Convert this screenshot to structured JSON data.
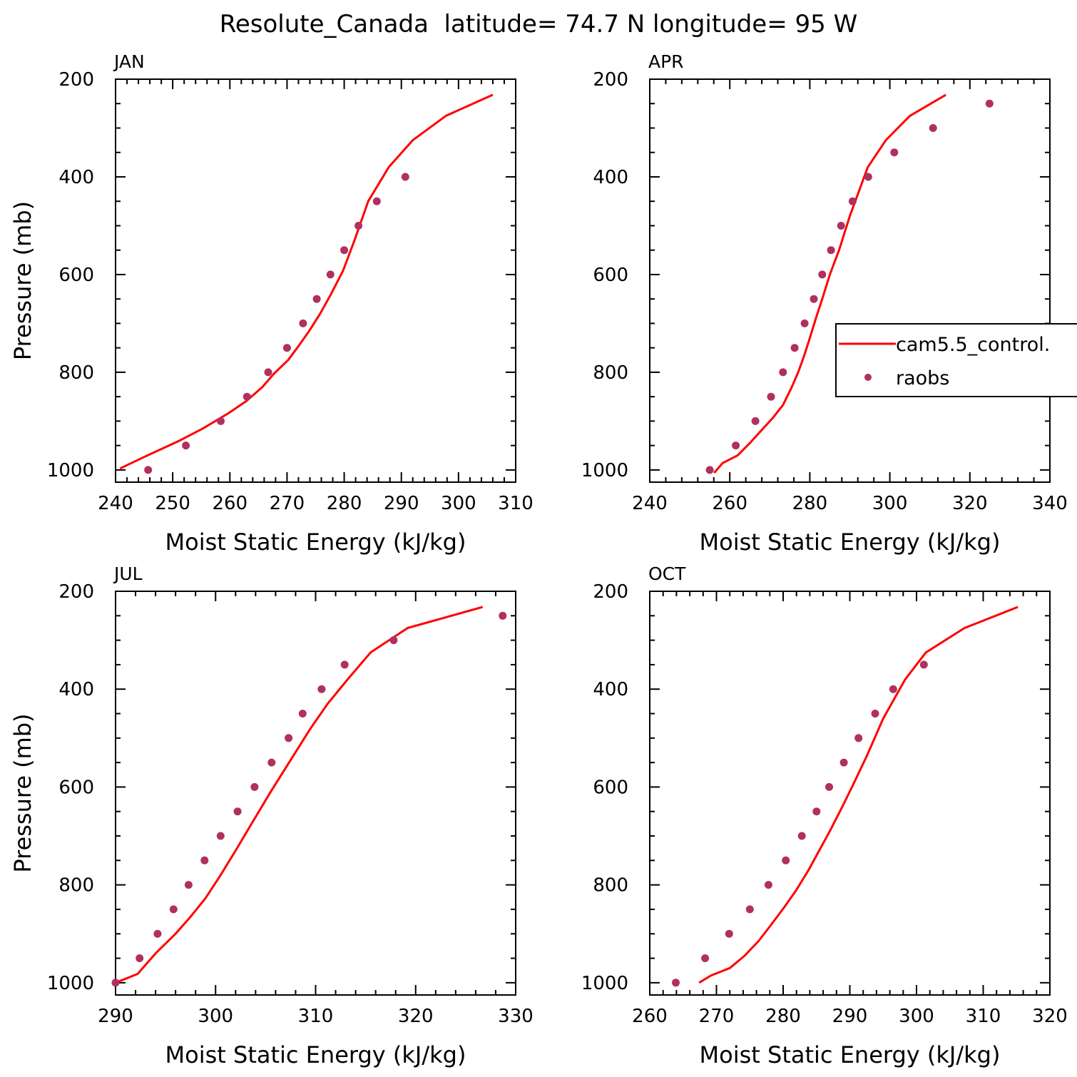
{
  "figure": {
    "title": "Resolute_Canada  latitude= 74.7 N longitude= 95 W"
  },
  "legend": {
    "entries": [
      {
        "label": "cam5.5_control.",
        "color": "#ff0000",
        "marker": "line"
      },
      {
        "label": "raobs",
        "color": "#b03060",
        "marker": "dot"
      }
    ],
    "placement": "inside APR panel, right, clipped at figure edge"
  },
  "colors": {
    "model": "#ff0000",
    "obs": "#b03060"
  },
  "chart_data": [
    {
      "type": "line",
      "panel": "JAN",
      "xlabel": "Moist Static Energy (kJ/kg)",
      "ylabel": "Pressure (mb)",
      "xlim": [
        240,
        310
      ],
      "xticks": [
        240,
        250,
        260,
        270,
        280,
        290,
        300,
        310
      ],
      "ylim": [
        1025,
        200
      ],
      "yticks": [
        200,
        400,
        600,
        800,
        1000
      ],
      "series": [
        {
          "name": "cam5.5_control.",
          "kind": "line",
          "x": [
            240.8,
            244.7,
            251.0,
            255.3,
            259.6,
            262.9,
            265.7,
            267.7,
            270.2,
            272.1,
            273.9,
            275.8,
            277.7,
            279.8,
            281.8,
            284.2,
            287.8,
            292.0,
            297.8,
            306.0
          ],
          "y": [
            997,
            975,
            941,
            915,
            885,
            859,
            830,
            803,
            775,
            745,
            715,
            680,
            640,
            592,
            530,
            450,
            380,
            325,
            275,
            232
          ]
        },
        {
          "name": "raobs",
          "kind": "scatter",
          "x": [
            245.7,
            252.3,
            258.4,
            263.0,
            266.7,
            270.0,
            272.8,
            275.2,
            277.6,
            280.0,
            282.5,
            285.7,
            290.7
          ],
          "y": [
            1000,
            950,
            900,
            850,
            800,
            750,
            700,
            650,
            600,
            550,
            500,
            450,
            400
          ]
        }
      ]
    },
    {
      "type": "line",
      "panel": "APR",
      "xlabel": "Moist Static Energy (kJ/kg)",
      "ylabel": "",
      "xlim": [
        240,
        340
      ],
      "xticks": [
        240,
        260,
        280,
        300,
        320,
        340
      ],
      "ylim": [
        1025,
        200
      ],
      "yticks": [
        200,
        400,
        600,
        800,
        1000
      ],
      "series": [
        {
          "name": "cam5.5_control.",
          "kind": "line",
          "x": [
            256.1,
            258.2,
            262.0,
            265.0,
            268.0,
            270.8,
            273.3,
            275.4,
            277.1,
            278.5,
            280.0,
            281.5,
            283.1,
            285.0,
            287.3,
            290.0,
            294.5,
            299.0,
            305.0,
            314.0
          ],
          "y": [
            1006,
            986,
            970,
            945,
            918,
            893,
            867,
            832,
            800,
            768,
            730,
            690,
            650,
            600,
            550,
            480,
            380,
            325,
            275,
            232
          ]
        },
        {
          "name": "raobs",
          "kind": "scatter",
          "x": [
            255.0,
            261.5,
            266.4,
            270.3,
            273.3,
            276.2,
            278.7,
            281.0,
            283.1,
            285.3,
            287.8,
            290.7,
            294.6,
            301.1,
            310.8,
            324.9
          ],
          "y": [
            1000,
            950,
            900,
            850,
            800,
            750,
            700,
            650,
            600,
            550,
            500,
            450,
            400,
            350,
            300,
            250
          ]
        }
      ]
    },
    {
      "type": "line",
      "panel": "JUL",
      "xlabel": "Moist Static Energy (kJ/kg)",
      "ylabel": "Pressure (mb)",
      "xlim": [
        290,
        330
      ],
      "xticks": [
        290,
        300,
        310,
        320,
        330
      ],
      "ylim": [
        1025,
        200
      ],
      "yticks": [
        200,
        400,
        600,
        800,
        1000
      ],
      "series": [
        {
          "name": "cam5.5_control.",
          "kind": "line",
          "x": [
            290.0,
            292.2,
            294.0,
            296.0,
            297.5,
            299.0,
            300.5,
            302.0,
            303.6,
            305.5,
            307.5,
            309.5,
            311.2,
            313.2,
            315.5,
            319.2,
            326.7
          ],
          "y": [
            1000,
            982,
            940,
            900,
            865,
            827,
            780,
            730,
            675,
            610,
            545,
            480,
            430,
            380,
            325,
            275,
            232
          ]
        },
        {
          "name": "raobs",
          "kind": "scatter",
          "x": [
            290.0,
            292.4,
            294.2,
            295.8,
            297.3,
            298.9,
            300.5,
            302.2,
            303.9,
            305.6,
            307.3,
            308.7,
            310.6,
            312.9,
            317.8,
            328.7
          ],
          "y": [
            1000,
            950,
            900,
            850,
            800,
            750,
            700,
            650,
            600,
            550,
            500,
            450,
            400,
            350,
            300,
            250
          ]
        }
      ]
    },
    {
      "type": "line",
      "panel": "OCT",
      "xlabel": "Moist Static Energy (kJ/kg)",
      "ylabel": "",
      "xlim": [
        260,
        320
      ],
      "xticks": [
        260,
        270,
        280,
        290,
        300,
        310,
        320
      ],
      "ylim": [
        1025,
        200
      ],
      "yticks": [
        200,
        400,
        600,
        800,
        1000
      ],
      "series": [
        {
          "name": "cam5.5_control.",
          "kind": "line",
          "x": [
            267.4,
            269.2,
            272.0,
            274.2,
            276.3,
            278.0,
            280.2,
            282.0,
            283.8,
            285.4,
            287.0,
            288.7,
            290.5,
            292.6,
            295.0,
            298.3,
            301.4,
            307.2,
            315.2
          ],
          "y": [
            1000,
            985,
            970,
            945,
            915,
            885,
            845,
            810,
            770,
            730,
            690,
            645,
            595,
            535,
            460,
            380,
            325,
            275,
            232
          ]
        },
        {
          "name": "raobs",
          "kind": "scatter",
          "x": [
            263.9,
            268.3,
            271.9,
            275.0,
            277.8,
            280.4,
            282.8,
            285.0,
            286.9,
            289.1,
            291.3,
            293.8,
            296.5,
            301.1
          ],
          "y": [
            1000,
            950,
            900,
            850,
            800,
            750,
            700,
            650,
            600,
            550,
            500,
            450,
            400,
            350
          ]
        }
      ]
    }
  ]
}
